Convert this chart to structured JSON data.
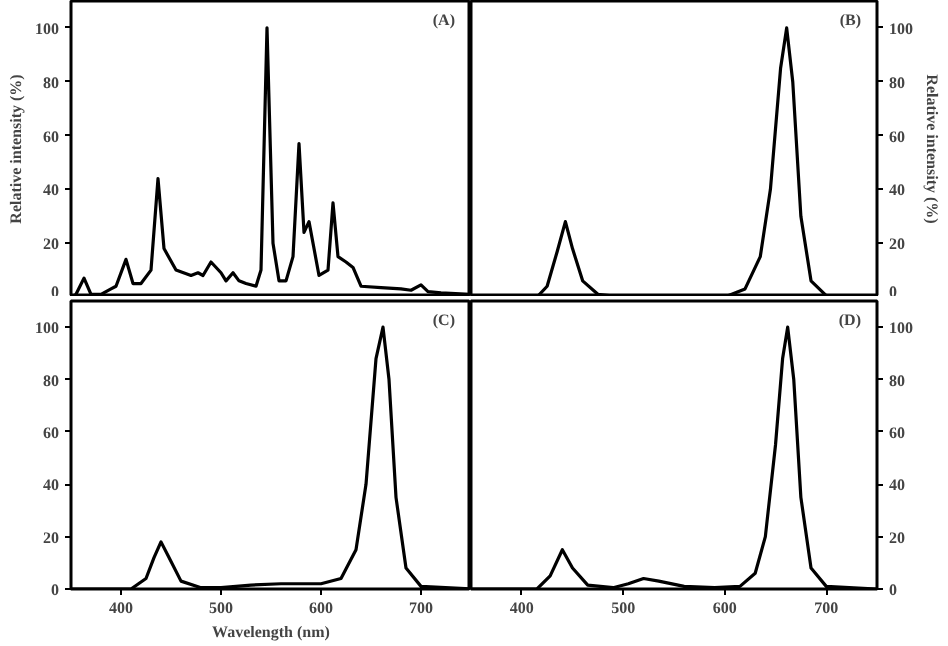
{
  "chart_data": [
    {
      "type": "line",
      "annotations": [
        "(A)"
      ],
      "ylabel": "Relative intensity (%)",
      "xlim": [
        350,
        750
      ],
      "ylim": [
        0,
        110
      ],
      "xticks": [
        400,
        500,
        600,
        700
      ],
      "yticks": [
        0,
        20,
        40,
        60,
        80,
        100
      ],
      "tick_labels": "y",
      "grid": false,
      "series": [
        {
          "color": "#000000",
          "x": [
            350,
            355,
            363,
            370,
            380,
            390,
            395,
            405,
            412,
            420,
            430,
            437,
            443,
            455,
            470,
            477,
            482,
            490,
            500,
            505,
            512,
            518,
            525,
            535,
            540,
            546,
            552,
            558,
            565,
            572,
            578,
            583,
            588,
            593,
            598,
            607,
            612,
            617,
            625,
            632,
            640,
            660,
            680,
            690,
            700,
            707,
            720,
            750
          ],
          "values": [
            0,
            1,
            7,
            1,
            1,
            3,
            4,
            14,
            5,
            5,
            10,
            44,
            18,
            10,
            8,
            9,
            8,
            13,
            9,
            6,
            9,
            6,
            5,
            4,
            10,
            100,
            20,
            6,
            6,
            15,
            57,
            24,
            28,
            18,
            8,
            10,
            35,
            15,
            13,
            11,
            4,
            3.5,
            3,
            2.5,
            4.5,
            2,
            1.5,
            1
          ]
        }
      ]
    },
    {
      "type": "line",
      "annotations": [
        "(B)"
      ],
      "ylabel": "Relative intensity (%)",
      "xlim": [
        350,
        750
      ],
      "ylim": [
        0,
        110
      ],
      "xticks": [
        400,
        500,
        600,
        700
      ],
      "yticks": [
        0,
        20,
        40,
        60,
        80,
        100
      ],
      "tick_labels": "y",
      "grid": false,
      "series": [
        {
          "color": "#000000",
          "x": [
            350,
            415,
            425,
            435,
            443,
            450,
            460,
            475,
            500,
            600,
            620,
            635,
            645,
            655,
            661,
            667,
            675,
            685,
            700,
            750
          ],
          "values": [
            0,
            0,
            4,
            17,
            28,
            18,
            6,
            1,
            0,
            0,
            3,
            15,
            40,
            85,
            100,
            80,
            30,
            6,
            0.5,
            0
          ]
        }
      ]
    },
    {
      "type": "line",
      "annotations": [
        "(C)"
      ],
      "xlabel": "Wavelength (nm)",
      "xlim": [
        350,
        750
      ],
      "ylim": [
        0,
        110
      ],
      "xticks": [
        400,
        500,
        600,
        700
      ],
      "yticks": [
        0,
        20,
        40,
        60,
        80,
        100
      ],
      "grid": false,
      "series": [
        {
          "color": "#000000",
          "x": [
            350,
            410,
            425,
            433,
            440,
            448,
            460,
            480,
            500,
            530,
            560,
            600,
            620,
            635,
            645,
            655,
            662,
            668,
            675,
            685,
            700,
            750
          ],
          "values": [
            0,
            0,
            4,
            12,
            18,
            12,
            3,
            0.5,
            0.5,
            1.5,
            2,
            2,
            4,
            15,
            40,
            88,
            100,
            80,
            35,
            8,
            1,
            0
          ]
        }
      ]
    },
    {
      "type": "line",
      "annotations": [
        "(D)"
      ],
      "xlim": [
        350,
        750
      ],
      "ylim": [
        0,
        110
      ],
      "xticks": [
        400,
        500,
        600,
        700
      ],
      "yticks": [
        0,
        20,
        40,
        60,
        80,
        100
      ],
      "grid": false,
      "series": [
        {
          "color": "#000000",
          "x": [
            350,
            415,
            428,
            440,
            450,
            465,
            490,
            505,
            520,
            535,
            560,
            590,
            615,
            630,
            640,
            650,
            657,
            662,
            668,
            675,
            685,
            700,
            750
          ],
          "values": [
            0,
            0,
            5,
            15,
            8,
            1.5,
            0.5,
            2,
            4,
            3,
            1,
            0.5,
            1,
            6,
            20,
            55,
            88,
            100,
            80,
            35,
            8,
            1,
            0
          ]
        }
      ]
    }
  ]
}
